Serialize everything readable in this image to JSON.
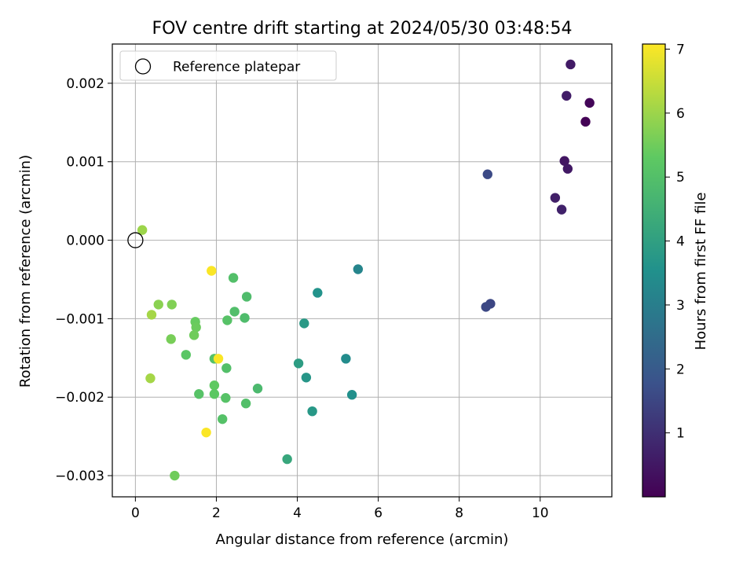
{
  "chart_data": {
    "type": "scatter",
    "title": "FOV centre drift starting at 2024/05/30 03:48:54",
    "xlabel": "Angular distance from reference (arcmin)",
    "ylabel": "Rotation from reference (arcmin)",
    "xlim": [
      -0.57,
      11.77
    ],
    "ylim": [
      -0.00327,
      0.0025
    ],
    "xticks": [
      0,
      2,
      4,
      6,
      8,
      10
    ],
    "xtick_labels": [
      "0",
      "2",
      "4",
      "6",
      "8",
      "10"
    ],
    "yticks": [
      0.002,
      0.001,
      0.0,
      -0.001,
      -0.002,
      -0.003
    ],
    "ytick_labels": [
      "0.002",
      "0.001",
      "0.000",
      "−0.001",
      "−0.002",
      "−0.003"
    ],
    "grid": true,
    "legend": {
      "position": "upper-left",
      "entries": [
        {
          "label": "Reference platepar",
          "marker": "open-circle"
        }
      ]
    },
    "reference_point": {
      "x": 0.0,
      "y": 0.0
    },
    "colorbar": {
      "label": "Hours from first FF file",
      "colormap": "viridis",
      "range": [
        0.0,
        7.08
      ],
      "ticks": [
        1,
        2,
        3,
        4,
        5,
        6,
        7
      ],
      "tick_labels": [
        "1",
        "2",
        "3",
        "4",
        "5",
        "6",
        "7"
      ]
    },
    "colors": {
      "viridis": [
        "#440154",
        "#3b528b",
        "#21918c",
        "#5ec962",
        "#fde725"
      ]
    },
    "points": [
      {
        "x": 10.75,
        "y": 0.00224,
        "c": 0.55
      },
      {
        "x": 10.65,
        "y": 0.00184,
        "c": 0.6
      },
      {
        "x": 11.22,
        "y": 0.00175,
        "c": 0.12
      },
      {
        "x": 11.12,
        "y": 0.00151,
        "c": 0.05
      },
      {
        "x": 10.6,
        "y": 0.00101,
        "c": 0.45
      },
      {
        "x": 10.68,
        "y": 0.00091,
        "c": 0.5
      },
      {
        "x": 8.7,
        "y": 0.00084,
        "c": 1.6
      },
      {
        "x": 10.37,
        "y": 0.00054,
        "c": 0.65
      },
      {
        "x": 10.53,
        "y": 0.00039,
        "c": 0.7
      },
      {
        "x": 8.77,
        "y": -0.00081,
        "c": 1.5
      },
      {
        "x": 8.66,
        "y": -0.00085,
        "c": 1.55
      },
      {
        "x": 0.17,
        "y": 0.00013,
        "c": 6.0
      },
      {
        "x": 1.88,
        "y": -0.00039,
        "c": 7.05
      },
      {
        "x": 2.42,
        "y": -0.00048,
        "c": 5.0
      },
      {
        "x": 5.5,
        "y": -0.00037,
        "c": 3.2
      },
      {
        "x": 4.5,
        "y": -0.00067,
        "c": 3.6
      },
      {
        "x": 2.75,
        "y": -0.00072,
        "c": 4.9
      },
      {
        "x": 0.57,
        "y": -0.00082,
        "c": 5.8
      },
      {
        "x": 0.9,
        "y": -0.00082,
        "c": 5.7
      },
      {
        "x": 2.45,
        "y": -0.00091,
        "c": 4.95
      },
      {
        "x": 0.4,
        "y": -0.00095,
        "c": 6.1
      },
      {
        "x": 2.7,
        "y": -0.00099,
        "c": 4.9
      },
      {
        "x": 2.27,
        "y": -0.00102,
        "c": 5.1
      },
      {
        "x": 1.48,
        "y": -0.00104,
        "c": 5.4
      },
      {
        "x": 1.5,
        "y": -0.00111,
        "c": 5.45
      },
      {
        "x": 4.17,
        "y": -0.00106,
        "c": 3.8
      },
      {
        "x": 1.45,
        "y": -0.00121,
        "c": 5.5
      },
      {
        "x": 0.88,
        "y": -0.00126,
        "c": 5.6
      },
      {
        "x": 1.25,
        "y": -0.00146,
        "c": 5.2
      },
      {
        "x": 5.2,
        "y": -0.00151,
        "c": 3.4
      },
      {
        "x": 1.95,
        "y": -0.00151,
        "c": 5.05
      },
      {
        "x": 2.05,
        "y": -0.00151,
        "c": 7.05
      },
      {
        "x": 4.03,
        "y": -0.00157,
        "c": 3.9
      },
      {
        "x": 2.25,
        "y": -0.00163,
        "c": 5.0
      },
      {
        "x": 4.22,
        "y": -0.00175,
        "c": 3.7
      },
      {
        "x": 0.37,
        "y": -0.00176,
        "c": 6.1
      },
      {
        "x": 1.95,
        "y": -0.00185,
        "c": 5.3
      },
      {
        "x": 3.02,
        "y": -0.00189,
        "c": 4.8
      },
      {
        "x": 1.57,
        "y": -0.00196,
        "c": 5.1
      },
      {
        "x": 1.95,
        "y": -0.00196,
        "c": 5.25
      },
      {
        "x": 5.35,
        "y": -0.00197,
        "c": 3.5
      },
      {
        "x": 2.23,
        "y": -0.00201,
        "c": 5.1
      },
      {
        "x": 2.73,
        "y": -0.00208,
        "c": 5.0
      },
      {
        "x": 4.37,
        "y": -0.00218,
        "c": 3.75
      },
      {
        "x": 2.15,
        "y": -0.00228,
        "c": 5.05
      },
      {
        "x": 1.75,
        "y": -0.00245,
        "c": 7.05
      },
      {
        "x": 3.75,
        "y": -0.00279,
        "c": 4.2
      },
      {
        "x": 0.97,
        "y": -0.003,
        "c": 5.5
      }
    ]
  }
}
